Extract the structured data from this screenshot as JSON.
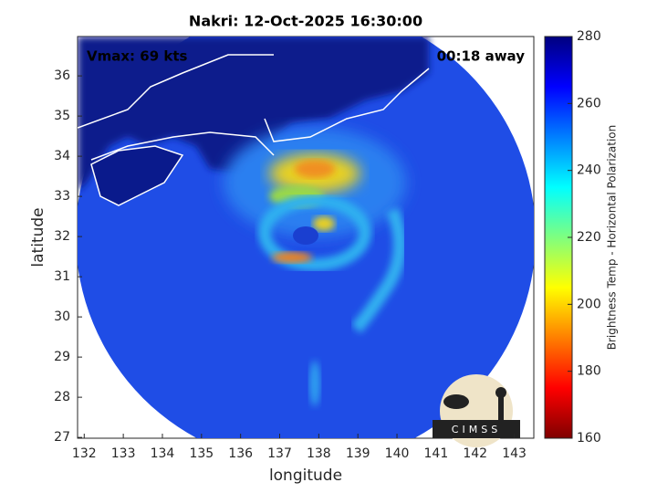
{
  "chart_data": {
    "type": "image",
    "title": "Nakri: 12-Oct-2025 16:30:00",
    "xlabel": "longitude",
    "ylabel": "latitude",
    "xlim": [
      131.83,
      143.5
    ],
    "xticks": [
      132,
      133,
      134,
      135,
      136,
      137,
      138,
      139,
      140,
      141,
      142,
      143
    ],
    "ylim": [
      26.98,
      36.98
    ],
    "yticks": [
      27,
      28,
      29,
      30,
      31,
      32,
      33,
      34,
      35,
      36
    ],
    "annotations": [
      "Vmax: 69 kts",
      "00:18 away"
    ],
    "logo": "CIMSS",
    "colorbar": {
      "label": "Brightness Temp - Horizontal Polarization",
      "lim": [
        160,
        280
      ],
      "ticks": [
        160,
        180,
        200,
        220,
        240,
        260,
        280
      ],
      "colormap": [
        "#7f0000",
        "#ff0000",
        "#ff7f00",
        "#ffff00",
        "#7fff7f",
        "#00ffff",
        "#007fff",
        "#0000ff",
        "#00007f"
      ]
    }
  }
}
